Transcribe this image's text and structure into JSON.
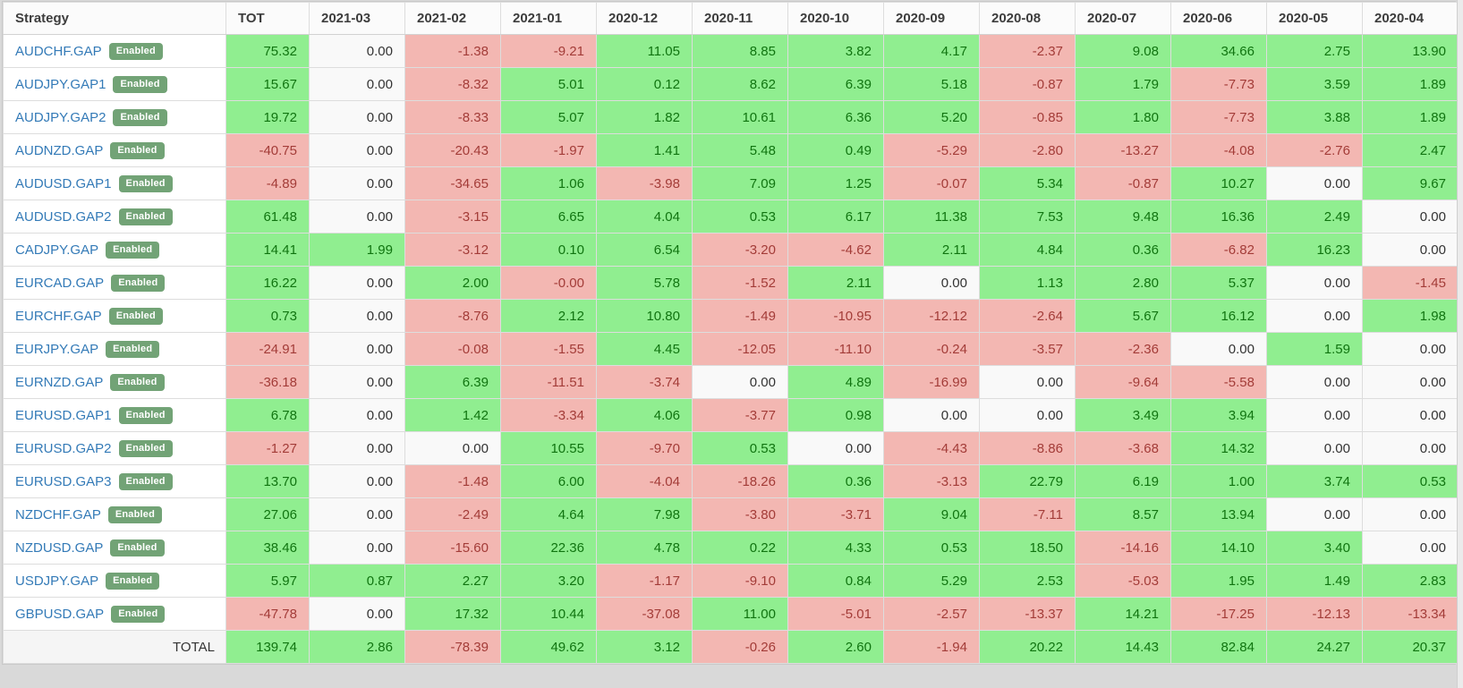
{
  "table": {
    "columns": [
      "Strategy",
      "TOT",
      "2021-03",
      "2021-02",
      "2021-01",
      "2020-12",
      "2020-11",
      "2020-10",
      "2020-09",
      "2020-08",
      "2020-07",
      "2020-06",
      "2020-05",
      "2020-04"
    ],
    "badge_label": "Enabled",
    "rows": [
      {
        "strategy": "AUDCHF.GAP",
        "enabled": true,
        "values": [
          "75.32",
          "0.00",
          "-1.38",
          "-9.21",
          "11.05",
          "8.85",
          "3.82",
          "4.17",
          "-2.37",
          "9.08",
          "34.66",
          "2.75",
          "13.90"
        ]
      },
      {
        "strategy": "AUDJPY.GAP1",
        "enabled": true,
        "values": [
          "15.67",
          "0.00",
          "-8.32",
          "5.01",
          "0.12",
          "8.62",
          "6.39",
          "5.18",
          "-0.87",
          "1.79",
          "-7.73",
          "3.59",
          "1.89"
        ]
      },
      {
        "strategy": "AUDJPY.GAP2",
        "enabled": true,
        "values": [
          "19.72",
          "0.00",
          "-8.33",
          "5.07",
          "1.82",
          "10.61",
          "6.36",
          "5.20",
          "-0.85",
          "1.80",
          "-7.73",
          "3.88",
          "1.89"
        ]
      },
      {
        "strategy": "AUDNZD.GAP",
        "enabled": true,
        "values": [
          "-40.75",
          "0.00",
          "-20.43",
          "-1.97",
          "1.41",
          "5.48",
          "0.49",
          "-5.29",
          "-2.80",
          "-13.27",
          "-4.08",
          "-2.76",
          "2.47"
        ]
      },
      {
        "strategy": "AUDUSD.GAP1",
        "enabled": true,
        "values": [
          "-4.89",
          "0.00",
          "-34.65",
          "1.06",
          "-3.98",
          "7.09",
          "1.25",
          "-0.07",
          "5.34",
          "-0.87",
          "10.27",
          "0.00",
          "9.67"
        ]
      },
      {
        "strategy": "AUDUSD.GAP2",
        "enabled": true,
        "values": [
          "61.48",
          "0.00",
          "-3.15",
          "6.65",
          "4.04",
          "0.53",
          "6.17",
          "11.38",
          "7.53",
          "9.48",
          "16.36",
          "2.49",
          "0.00"
        ]
      },
      {
        "strategy": "CADJPY.GAP",
        "enabled": true,
        "values": [
          "14.41",
          "1.99",
          "-3.12",
          "0.10",
          "6.54",
          "-3.20",
          "-4.62",
          "2.11",
          "4.84",
          "0.36",
          "-6.82",
          "16.23",
          "0.00"
        ]
      },
      {
        "strategy": "EURCAD.GAP",
        "enabled": true,
        "values": [
          "16.22",
          "0.00",
          "2.00",
          "-0.00",
          "5.78",
          "-1.52",
          "2.11",
          "0.00",
          "1.13",
          "2.80",
          "5.37",
          "0.00",
          "-1.45"
        ]
      },
      {
        "strategy": "EURCHF.GAP",
        "enabled": true,
        "values": [
          "0.73",
          "0.00",
          "-8.76",
          "2.12",
          "10.80",
          "-1.49",
          "-10.95",
          "-12.12",
          "-2.64",
          "5.67",
          "16.12",
          "0.00",
          "1.98"
        ]
      },
      {
        "strategy": "EURJPY.GAP",
        "enabled": true,
        "values": [
          "-24.91",
          "0.00",
          "-0.08",
          "-1.55",
          "4.45",
          "-12.05",
          "-11.10",
          "-0.24",
          "-3.57",
          "-2.36",
          "0.00",
          "1.59",
          "0.00"
        ]
      },
      {
        "strategy": "EURNZD.GAP",
        "enabled": true,
        "values": [
          "-36.18",
          "0.00",
          "6.39",
          "-11.51",
          "-3.74",
          "0.00",
          "4.89",
          "-16.99",
          "0.00",
          "-9.64",
          "-5.58",
          "0.00",
          "0.00"
        ]
      },
      {
        "strategy": "EURUSD.GAP1",
        "enabled": true,
        "values": [
          "6.78",
          "0.00",
          "1.42",
          "-3.34",
          "4.06",
          "-3.77",
          "0.98",
          "0.00",
          "0.00",
          "3.49",
          "3.94",
          "0.00",
          "0.00"
        ]
      },
      {
        "strategy": "EURUSD.GAP2",
        "enabled": true,
        "values": [
          "-1.27",
          "0.00",
          "0.00",
          "10.55",
          "-9.70",
          "0.53",
          "0.00",
          "-4.43",
          "-8.86",
          "-3.68",
          "14.32",
          "0.00",
          "0.00"
        ]
      },
      {
        "strategy": "EURUSD.GAP3",
        "enabled": true,
        "values": [
          "13.70",
          "0.00",
          "-1.48",
          "6.00",
          "-4.04",
          "-18.26",
          "0.36",
          "-3.13",
          "22.79",
          "6.19",
          "1.00",
          "3.74",
          "0.53"
        ]
      },
      {
        "strategy": "NZDCHF.GAP",
        "enabled": true,
        "values": [
          "27.06",
          "0.00",
          "-2.49",
          "4.64",
          "7.98",
          "-3.80",
          "-3.71",
          "9.04",
          "-7.11",
          "8.57",
          "13.94",
          "0.00",
          "0.00"
        ]
      },
      {
        "strategy": "NZDUSD.GAP",
        "enabled": true,
        "values": [
          "38.46",
          "0.00",
          "-15.60",
          "22.36",
          "4.78",
          "0.22",
          "4.33",
          "0.53",
          "18.50",
          "-14.16",
          "14.10",
          "3.40",
          "0.00"
        ]
      },
      {
        "strategy": "USDJPY.GAP",
        "enabled": true,
        "values": [
          "5.97",
          "0.87",
          "2.27",
          "3.20",
          "-1.17",
          "-9.10",
          "0.84",
          "5.29",
          "2.53",
          "-5.03",
          "1.95",
          "1.49",
          "2.83"
        ]
      },
      {
        "strategy": "GBPUSD.GAP",
        "enabled": true,
        "values": [
          "-47.78",
          "0.00",
          "17.32",
          "10.44",
          "-37.08",
          "11.00",
          "-5.01",
          "-2.57",
          "-13.37",
          "14.21",
          "-17.25",
          "-12.13",
          "-13.34"
        ]
      }
    ],
    "total": {
      "label": "TOTAL",
      "values": [
        "139.74",
        "2.86",
        "-78.39",
        "49.62",
        "3.12",
        "-0.26",
        "2.60",
        "-1.94",
        "20.22",
        "14.43",
        "82.84",
        "24.27",
        "20.37"
      ]
    }
  },
  "colors": {
    "positive_bg": "#90ee90",
    "positive_text": "#107410",
    "negative_bg": "#f3b7b2",
    "negative_text": "#a33c38",
    "zero_bg": "#f9f9f9",
    "zero_text": "#333333",
    "link": "#337ab7",
    "badge_bg": "#72a376"
  }
}
